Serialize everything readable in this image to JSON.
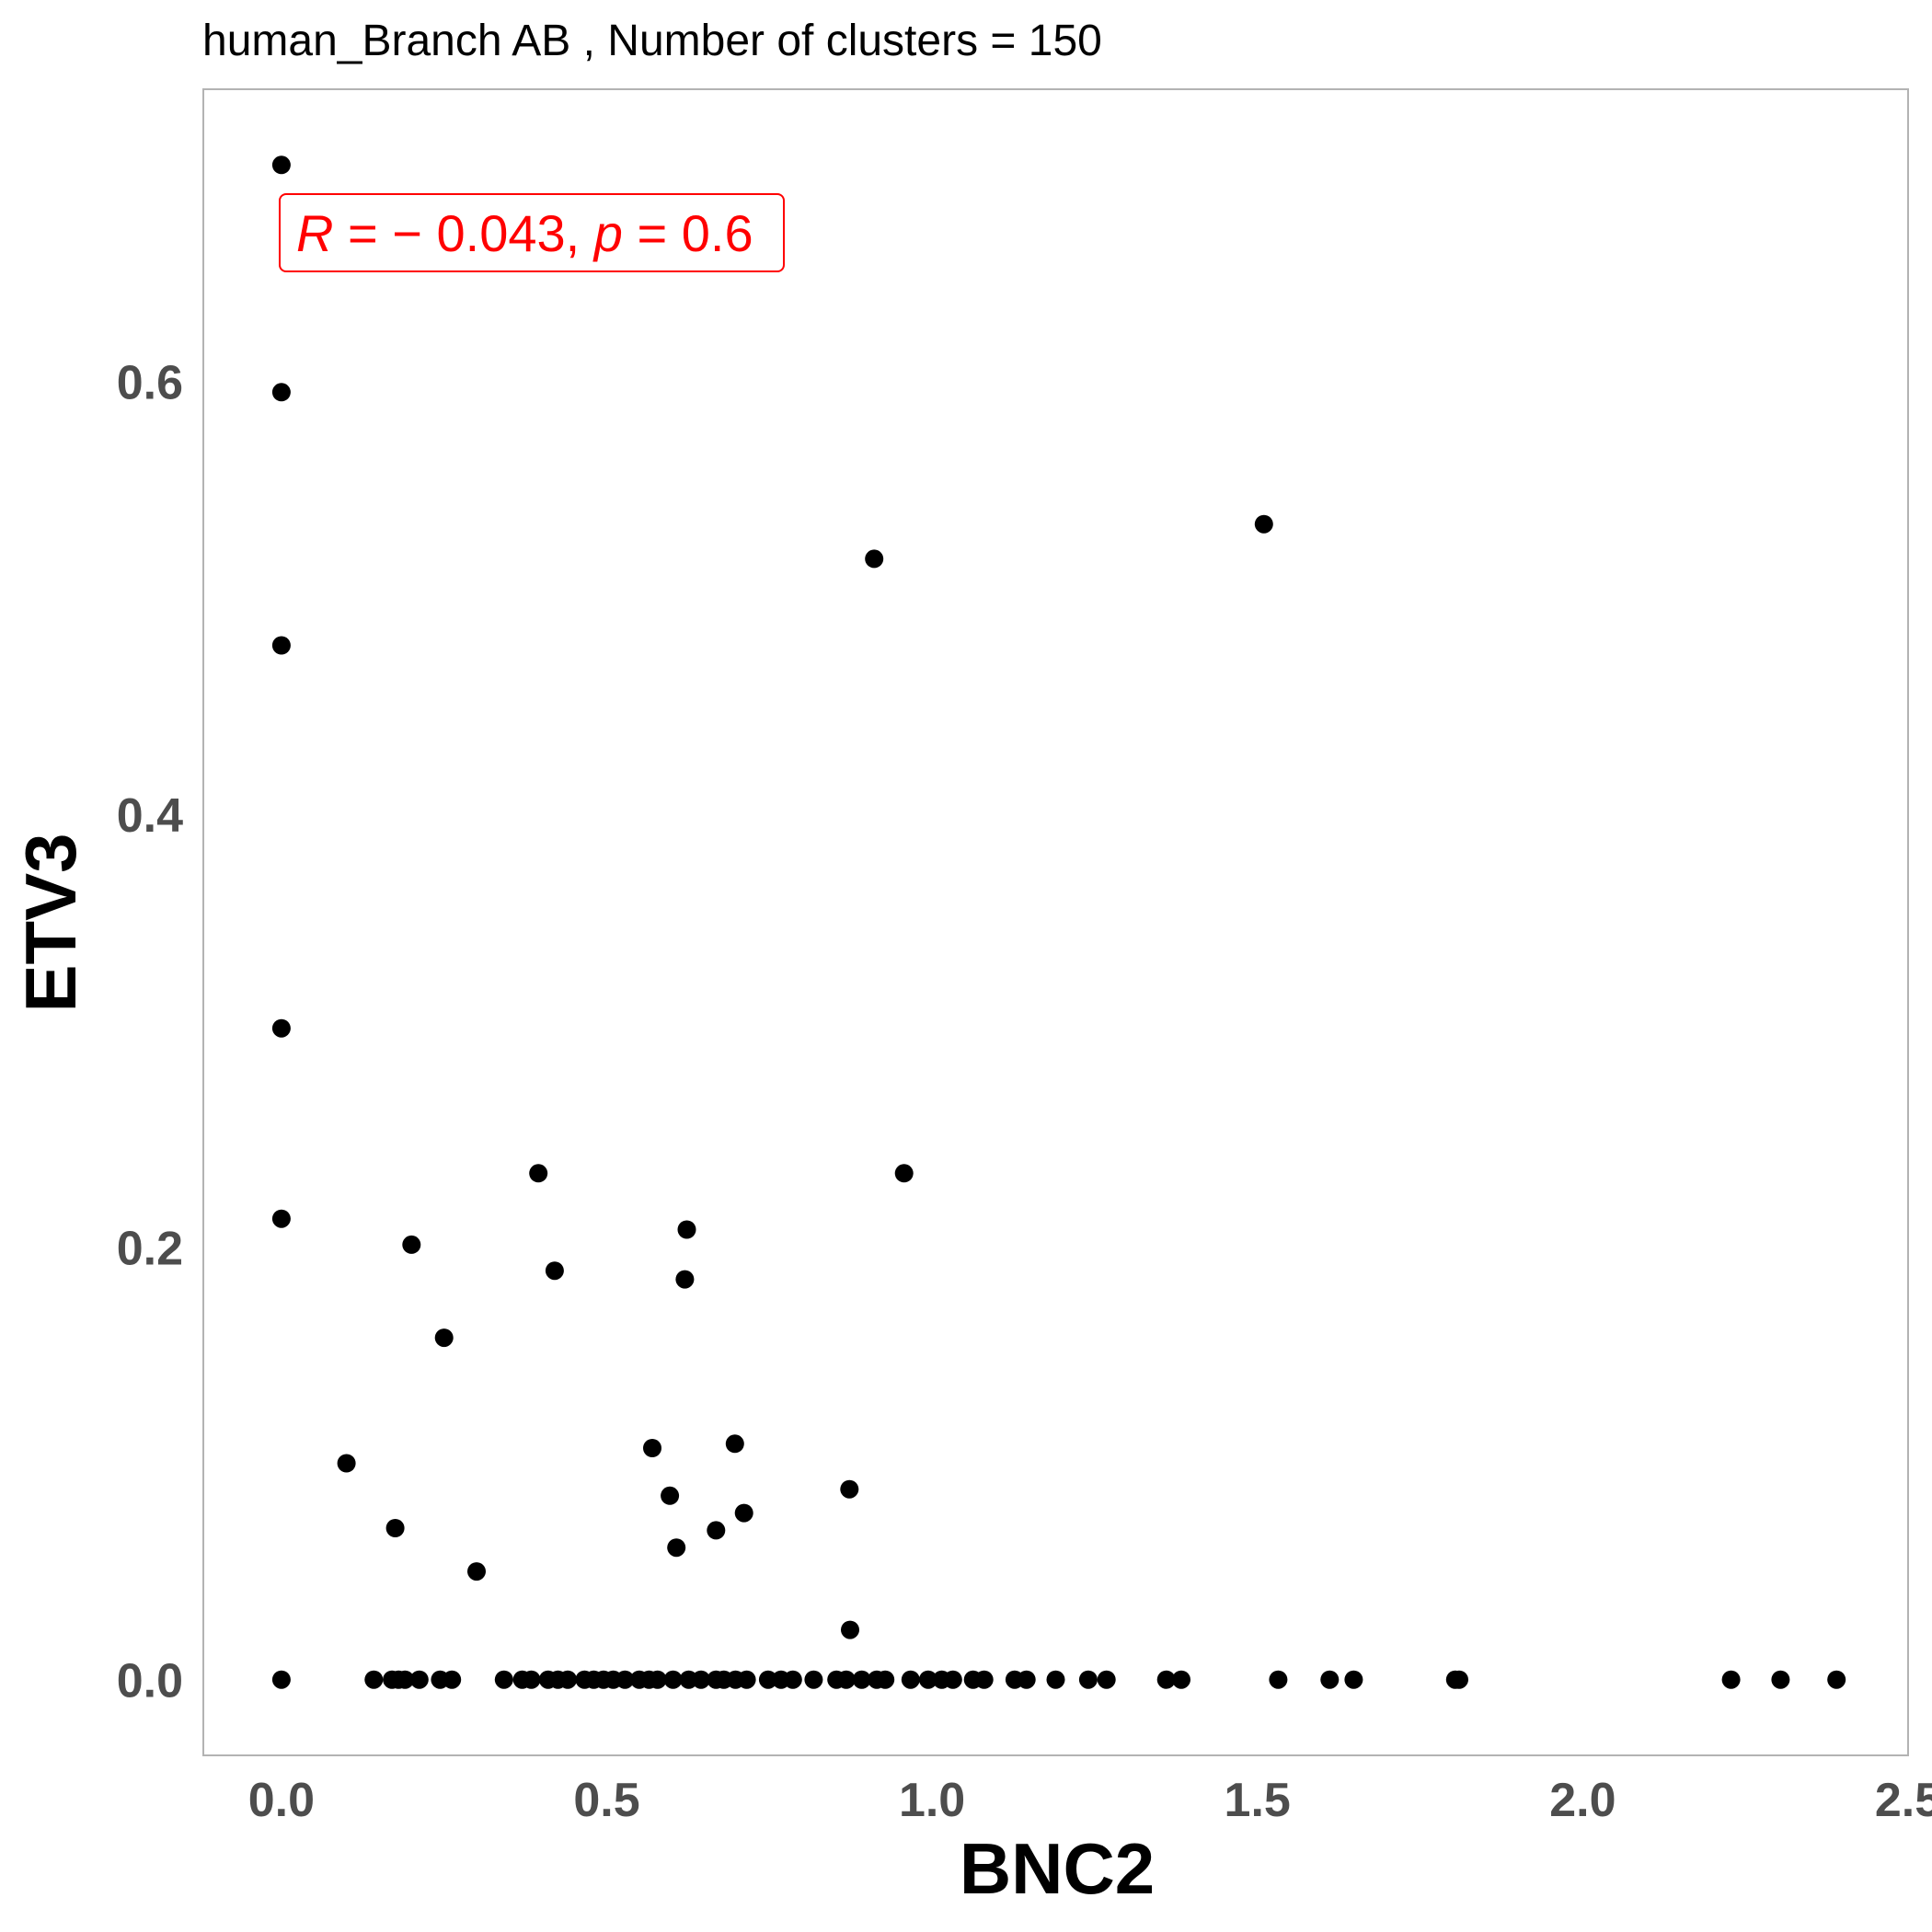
{
  "chart_data": {
    "type": "scatter",
    "title": "human_Branch AB , Number of clusters =  150",
    "xlabel": "BNC2",
    "ylabel": "ETV3",
    "xlim": [
      -0.12,
      2.5
    ],
    "ylim": [
      -0.035,
      0.735
    ],
    "x_ticks": [
      0.0,
      0.5,
      1.0,
      1.5,
      2.0,
      2.5
    ],
    "x_tick_labels": [
      "0.0",
      "0.5",
      "1.0",
      "1.5",
      "2.0",
      "2.5"
    ],
    "y_ticks": [
      0.0,
      0.2,
      0.4,
      0.6
    ],
    "y_tick_labels": [
      "0.0",
      "0.2",
      "0.4",
      "0.6"
    ],
    "grid": false,
    "point_color": "#000000",
    "frame_color": "#b3b3b3",
    "annotation": {
      "r_symbol": "R",
      "r_value": " = − 0.043, ",
      "p_symbol": "p",
      "p_value": " = 0.6",
      "color": "#ff0000"
    },
    "points": {
      "x": [
        0.0,
        0.0,
        0.0,
        0.0,
        0.0,
        0.0,
        0.1,
        0.175,
        0.2,
        0.25,
        0.3,
        0.395,
        0.42,
        0.57,
        0.597,
        0.607,
        0.62,
        0.623,
        0.668,
        0.697,
        0.711,
        0.873,
        0.874,
        0.911,
        0.957,
        1.51,
        0.142,
        0.17,
        0.18,
        0.19,
        0.212,
        0.244,
        0.262,
        0.342,
        0.37,
        0.384,
        0.41,
        0.425,
        0.44,
        0.466,
        0.48,
        0.495,
        0.51,
        0.528,
        0.55,
        0.565,
        0.578,
        0.602,
        0.626,
        0.645,
        0.668,
        0.68,
        0.698,
        0.715,
        0.748,
        0.768,
        0.786,
        0.818,
        0.853,
        0.868,
        0.892,
        0.915,
        0.928,
        0.967,
        0.994,
        1.015,
        1.032,
        1.063,
        1.08,
        1.127,
        1.145,
        1.19,
        1.24,
        1.268,
        1.36,
        1.383,
        1.532,
        1.611,
        1.648,
        1.804,
        1.81,
        2.228,
        2.304,
        2.39
      ],
      "y": [
        0.7,
        0.595,
        0.478,
        0.301,
        0.213,
        0.0,
        0.1,
        0.07,
        0.201,
        0.158,
        0.05,
        0.234,
        0.189,
        0.107,
        0.085,
        0.061,
        0.185,
        0.208,
        0.069,
        0.109,
        0.077,
        0.088,
        0.023,
        0.518,
        0.234,
        0.534,
        0.0,
        0.0,
        0.0,
        0.0,
        0.0,
        0.0,
        0.0,
        0.0,
        0.0,
        0.0,
        0.0,
        0.0,
        0.0,
        0.0,
        0.0,
        0.0,
        0.0,
        0.0,
        0.0,
        0.0,
        0.0,
        0.0,
        0.0,
        0.0,
        0.0,
        0.0,
        0.0,
        0.0,
        0.0,
        0.0,
        0.0,
        0.0,
        0.0,
        0.0,
        0.0,
        0.0,
        0.0,
        0.0,
        0.0,
        0.0,
        0.0,
        0.0,
        0.0,
        0.0,
        0.0,
        0.0,
        0.0,
        0.0,
        0.0,
        0.0,
        0.0,
        0.0,
        0.0,
        0.0,
        0.0,
        0.0,
        0.0,
        0.0
      ]
    }
  }
}
